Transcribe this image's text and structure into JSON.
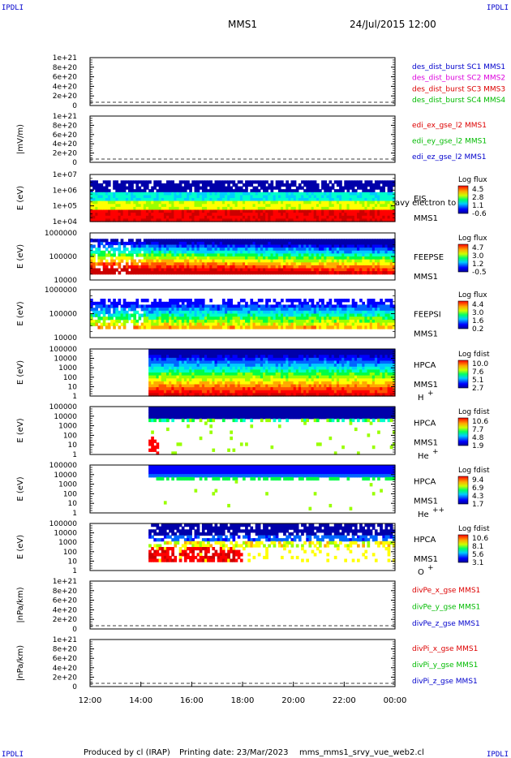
{
  "corner_label": "IPDLI",
  "header": {
    "spacecraft": "MMS1",
    "date_time": "24/Jul/2015 12:00"
  },
  "footer": {
    "produced_by": "Produced by cl (IRAP)",
    "printing_date": "Printing date: 23/Mar/2023",
    "file": "mms_mms1_srvy_vue_web2.cl"
  },
  "colors": {
    "blue": "#0000cc",
    "magenta": "#dd00dd",
    "red": "#dd0000",
    "green": "#00bb00"
  },
  "chart_data": {
    "type": "heatmap",
    "xlabel": "",
    "x_ticks": [
      "12:00",
      "14:00",
      "16:00",
      "18:00",
      "20:00",
      "22:00",
      "00:00"
    ],
    "x_range": [
      "12:00",
      "00:00"
    ],
    "panels": [
      {
        "ylabel": "",
        "y_ticks": [
          "1e+21",
          "8e+20",
          "6e+20",
          "4e+20",
          "2e+20",
          "0"
        ],
        "legend": [
          {
            "name": "des_dist_burst SC1 MMS1",
            "color": "#0000cc"
          },
          {
            "name": "des_dist_burst SC2 MMS2",
            "color": "#dd00dd"
          },
          {
            "name": "des_dist_burst SC3 MMS3",
            "color": "#dd0000"
          },
          {
            "name": "des_dist_burst SC4 MMS4",
            "color": "#00bb00"
          }
        ]
      },
      {
        "ylabel": "|mV/m)",
        "y_ticks": [
          "1e+21",
          "8e+20",
          "6e+20",
          "4e+20",
          "2e+20",
          "0"
        ],
        "legend": [
          {
            "name": "edi_ex_gse_l2 MMS1",
            "color": "#dd0000"
          },
          {
            "name": "edi_ey_gse_l2 MMS1",
            "color": "#00bb00"
          },
          {
            "name": "edi_ez_gse_l2 MMS1",
            "color": "#0000cc"
          }
        ]
      },
      {
        "ylabel": "E (eV)",
        "y_ticks": [
          "1e+07",
          "1e+06",
          "1e+05",
          "1e+04"
        ],
        "labels": [
          "EIS",
          "MMS1"
        ],
        "overlay": "avy electron to",
        "cbar_title": "Log flux",
        "cbar_ticks": [
          "4.5",
          "2.8",
          "1.1",
          "-0.6"
        ]
      },
      {
        "ylabel": "E (eV)",
        "y_ticks": [
          "1000000",
          "100000",
          "10000"
        ],
        "labels": [
          "FEEPSE",
          "MMS1"
        ],
        "cbar_title": "Log flux",
        "cbar_ticks": [
          "4.7",
          "3.0",
          "1.2",
          "-0.5"
        ]
      },
      {
        "ylabel": "E (eV)",
        "y_ticks": [
          "1000000",
          "100000",
          "10000"
        ],
        "labels": [
          "FEEPSI",
          "MMS1"
        ],
        "cbar_title": "Log flux",
        "cbar_ticks": [
          "4.4",
          "3.0",
          "1.6",
          "0.2"
        ]
      },
      {
        "ylabel": "E (eV)",
        "y_ticks": [
          "100000",
          "10000",
          "1000",
          "100",
          "10",
          "1"
        ],
        "labels": [
          "HPCA",
          "MMS1"
        ],
        "species": "H",
        "charge": "+",
        "cbar_title": "Log fdist",
        "cbar_ticks": [
          "10.0",
          "7.6",
          "5.1",
          "2.7"
        ]
      },
      {
        "ylabel": "E (eV)",
        "y_ticks": [
          "100000",
          "10000",
          "1000",
          "100",
          "10",
          "1"
        ],
        "labels": [
          "HPCA",
          "MMS1"
        ],
        "species": "He",
        "charge": "+",
        "cbar_title": "Log fdist",
        "cbar_ticks": [
          "10.6",
          "7.7",
          "4.8",
          "1.9"
        ]
      },
      {
        "ylabel": "E (eV)",
        "y_ticks": [
          "100000",
          "10000",
          "1000",
          "100",
          "10",
          "1"
        ],
        "labels": [
          "HPCA",
          "MMS1"
        ],
        "species": "He",
        "charge": "++",
        "cbar_title": "Log fdist",
        "cbar_ticks": [
          "9.4",
          "6.9",
          "4.3",
          "1.7"
        ]
      },
      {
        "ylabel": "E (eV)",
        "y_ticks": [
          "100000",
          "10000",
          "1000",
          "100",
          "10",
          "1"
        ],
        "labels": [
          "HPCA",
          "MMS1"
        ],
        "species": "O",
        "charge": "+",
        "cbar_title": "Log fdist",
        "cbar_ticks": [
          "10.6",
          "8.1",
          "5.6",
          "3.1"
        ]
      },
      {
        "ylabel": "|nPa/km)",
        "y_ticks": [
          "1e+21",
          "8e+20",
          "6e+20",
          "4e+20",
          "2e+20",
          "0"
        ],
        "legend": [
          {
            "name": "divPe_x_gse MMS1",
            "color": "#dd0000"
          },
          {
            "name": "divPe_y_gse MMS1",
            "color": "#00bb00"
          },
          {
            "name": "divPe_z_gse MMS1",
            "color": "#0000cc"
          }
        ]
      },
      {
        "ylabel": "|nPa/km)",
        "y_ticks": [
          "1e+21",
          "8e+20",
          "6e+20",
          "4e+20",
          "2e+20",
          "0"
        ],
        "legend": [
          {
            "name": "divPi_x_gse MMS1",
            "color": "#dd0000"
          },
          {
            "name": "divPi_y_gse MMS1",
            "color": "#00bb00"
          },
          {
            "name": "divPi_z_gse MMS1",
            "color": "#0000cc"
          }
        ]
      }
    ]
  }
}
